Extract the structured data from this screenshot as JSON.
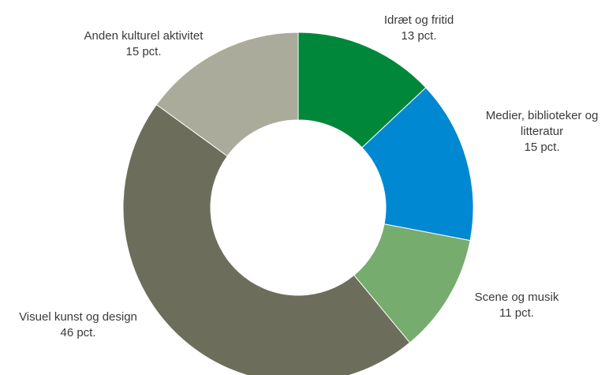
{
  "chart_data": {
    "type": "donut",
    "title": "",
    "unit": "pct.",
    "slices": [
      {
        "label": "Idræt og fritid",
        "value": 13,
        "value_label": "13 pct.",
        "color": "#00873A"
      },
      {
        "label": "Medier, biblioteker og litteratur",
        "label_lines": [
          "Medier, biblioteker og",
          "litteratur"
        ],
        "value": 15,
        "value_label": "15 pct.",
        "color": "#0088D2"
      },
      {
        "label": "Scene og musik",
        "value": 11,
        "value_label": "11 pct.",
        "color": "#76AC6E"
      },
      {
        "label": "Visuel kunst og design",
        "value": 46,
        "value_label": "46 pct.",
        "color": "#6D6D5B"
      },
      {
        "label": "Anden kulturel aktivitet",
        "value": 15,
        "value_label": "15 pct.",
        "color": "#ABAB9B"
      }
    ],
    "start_angle": "12 o'clock",
    "direction": "clockwise"
  }
}
